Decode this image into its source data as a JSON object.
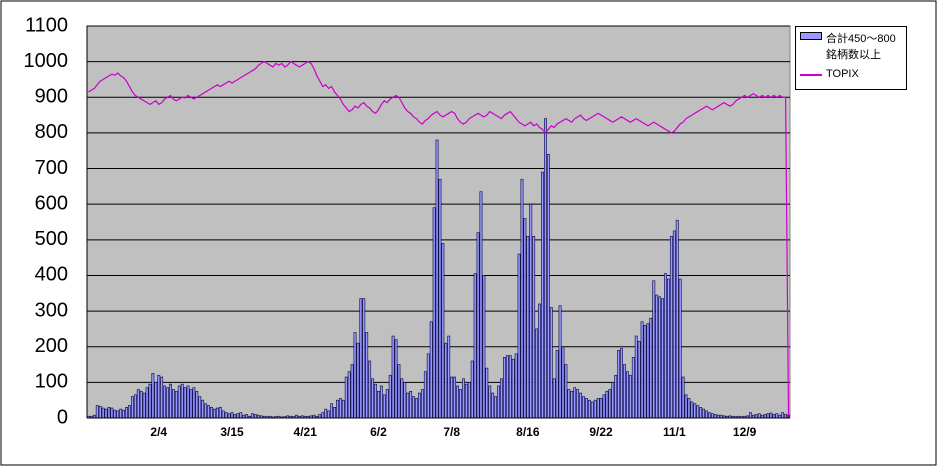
{
  "chart_data": {
    "type": "bar",
    "categories": [
      null,
      null,
      null,
      null,
      null,
      null,
      null,
      null,
      null,
      null,
      null,
      null,
      null,
      null,
      null,
      null,
      null,
      null,
      null,
      null,
      null,
      null,
      null,
      null,
      "2/4",
      null,
      null,
      null,
      null,
      null,
      null,
      null,
      null,
      null,
      null,
      null,
      null,
      null,
      null,
      null,
      null,
      null,
      null,
      null,
      null,
      null,
      null,
      null,
      null,
      "3/15",
      null,
      null,
      null,
      null,
      null,
      null,
      null,
      null,
      null,
      null,
      null,
      null,
      null,
      null,
      null,
      null,
      null,
      null,
      null,
      null,
      null,
      null,
      null,
      null,
      "4/21",
      null,
      null,
      null,
      null,
      null,
      null,
      null,
      null,
      null,
      null,
      null,
      null,
      null,
      null,
      null,
      null,
      null,
      null,
      null,
      null,
      null,
      null,
      null,
      null,
      "6/2",
      null,
      null,
      null,
      null,
      null,
      null,
      null,
      null,
      null,
      null,
      null,
      null,
      null,
      null,
      null,
      null,
      null,
      null,
      null,
      null,
      null,
      null,
      null,
      null,
      "7/8",
      null,
      null,
      null,
      null,
      null,
      null,
      null,
      null,
      null,
      null,
      null,
      null,
      null,
      null,
      null,
      null,
      null,
      null,
      null,
      null,
      null,
      null,
      null,
      null,
      null,
      "8/16",
      null,
      null,
      null,
      null,
      null,
      null,
      null,
      null,
      null,
      null,
      null,
      null,
      null,
      null,
      null,
      null,
      null,
      null,
      null,
      null,
      null,
      null,
      null,
      null,
      "9/22",
      null,
      null,
      null,
      null,
      null,
      null,
      null,
      null,
      null,
      null,
      null,
      null,
      null,
      null,
      null,
      null,
      null,
      null,
      null,
      null,
      null,
      null,
      null,
      null,
      "11/1",
      null,
      null,
      null,
      null,
      null,
      null,
      null,
      null,
      null,
      null,
      null,
      null,
      null,
      null,
      null,
      null,
      null,
      null,
      null,
      null,
      null,
      null,
      null,
      "12/9",
      null,
      null,
      null,
      null,
      null,
      null,
      null,
      null,
      null,
      null,
      null,
      null,
      null,
      null,
      null
    ],
    "series": [
      {
        "name": "合計450～800銘柄数以上",
        "type": "bar",
        "color": "#9999ff",
        "values": [
          5,
          5,
          8,
          35,
          33,
          28,
          25,
          30,
          28,
          22,
          20,
          25,
          22,
          30,
          35,
          60,
          65,
          80,
          75,
          70,
          85,
          95,
          125,
          100,
          120,
          115,
          90,
          85,
          95,
          80,
          75,
          90,
          95,
          85,
          90,
          80,
          85,
          75,
          60,
          50,
          40,
          35,
          30,
          25,
          28,
          30,
          20,
          15,
          12,
          15,
          10,
          12,
          15,
          8,
          10,
          5,
          12,
          10,
          8,
          6,
          5,
          4,
          5,
          3,
          4,
          5,
          3,
          4,
          6,
          5,
          4,
          8,
          5,
          6,
          5,
          5,
          6,
          8,
          5,
          10,
          15,
          25,
          20,
          40,
          30,
          50,
          55,
          50,
          115,
          130,
          150,
          240,
          210,
          335,
          335,
          240,
          160,
          110,
          95,
          75,
          90,
          65,
          80,
          120,
          230,
          220,
          150,
          110,
          100,
          70,
          75,
          60,
          55,
          70,
          80,
          130,
          180,
          270,
          590,
          780,
          670,
          490,
          210,
          230,
          115,
          115,
          90,
          80,
          110,
          95,
          100,
          160,
          405,
          520,
          635,
          400,
          140,
          90,
          70,
          60,
          90,
          110,
          170,
          175,
          175,
          165,
          180,
          460,
          670,
          560,
          510,
          600,
          510,
          250,
          320,
          690,
          840,
          740,
          310,
          110,
          190,
          315,
          200,
          150,
          80,
          75,
          85,
          80,
          70,
          60,
          55,
          50,
          45,
          50,
          55,
          55,
          65,
          75,
          80,
          100,
          120,
          190,
          195,
          150,
          130,
          120,
          170,
          230,
          215,
          270,
          260,
          265,
          280,
          385,
          345,
          340,
          335,
          405,
          390,
          510,
          525,
          555,
          390,
          115,
          65,
          55,
          45,
          40,
          35,
          30,
          25,
          20,
          15,
          12,
          10,
          8,
          8,
          6,
          5,
          6,
          5,
          4,
          5,
          4,
          5,
          6,
          15,
          8,
          10,
          12,
          8,
          10,
          12,
          14,
          10,
          12,
          8,
          15,
          10,
          8
        ]
      },
      {
        "name": "TOPIX",
        "type": "line",
        "color": "#cc00cc",
        "values": [
          915,
          920,
          925,
          935,
          945,
          950,
          955,
          960,
          965,
          962,
          968,
          960,
          955,
          945,
          930,
          915,
          905,
          900,
          895,
          890,
          885,
          880,
          885,
          890,
          880,
          885,
          895,
          900,
          905,
          895,
          890,
          895,
          900,
          898,
          905,
          900,
          895,
          900,
          905,
          910,
          915,
          920,
          925,
          930,
          935,
          930,
          935,
          940,
          945,
          940,
          945,
          950,
          955,
          960,
          965,
          970,
          975,
          980,
          990,
          995,
          1000,
          995,
          990,
          985,
          995,
          990,
          995,
          985,
          990,
          1000,
          995,
          990,
          985,
          990,
          995,
          1000,
          995,
          980,
          960,
          945,
          930,
          935,
          925,
          930,
          915,
          905,
          895,
          880,
          870,
          860,
          865,
          875,
          870,
          880,
          885,
          875,
          870,
          860,
          855,
          865,
          880,
          890,
          885,
          895,
          900,
          905,
          900,
          885,
          870,
          860,
          855,
          845,
          840,
          830,
          825,
          835,
          840,
          850,
          855,
          860,
          850,
          845,
          850,
          855,
          860,
          855,
          840,
          830,
          825,
          830,
          840,
          845,
          850,
          855,
          850,
          845,
          850,
          860,
          855,
          850,
          845,
          840,
          850,
          855,
          860,
          850,
          840,
          830,
          825,
          820,
          825,
          830,
          820,
          825,
          815,
          810,
          800,
          810,
          820,
          815,
          825,
          830,
          835,
          840,
          835,
          830,
          840,
          845,
          850,
          840,
          835,
          840,
          845,
          850,
          855,
          850,
          845,
          840,
          835,
          830,
          835,
          840,
          845,
          840,
          835,
          830,
          835,
          840,
          835,
          830,
          825,
          820,
          825,
          830,
          825,
          820,
          815,
          810,
          805,
          800,
          805,
          815,
          825,
          830,
          840,
          845,
          850,
          855,
          860,
          865,
          870,
          875,
          870,
          865,
          870,
          875,
          880,
          885,
          880,
          875,
          880,
          890,
          895,
          900,
          905,
          900,
          905,
          910,
          905,
          900,
          905,
          900,
          905,
          900,
          905,
          900,
          905,
          900,
          900,
          0
        ]
      }
    ],
    "ylim": [
      0,
      1100
    ],
    "yticks": [
      0,
      100,
      200,
      300,
      400,
      500,
      600,
      700,
      800,
      900,
      1000,
      1100
    ],
    "grid": true,
    "legend": "right"
  }
}
